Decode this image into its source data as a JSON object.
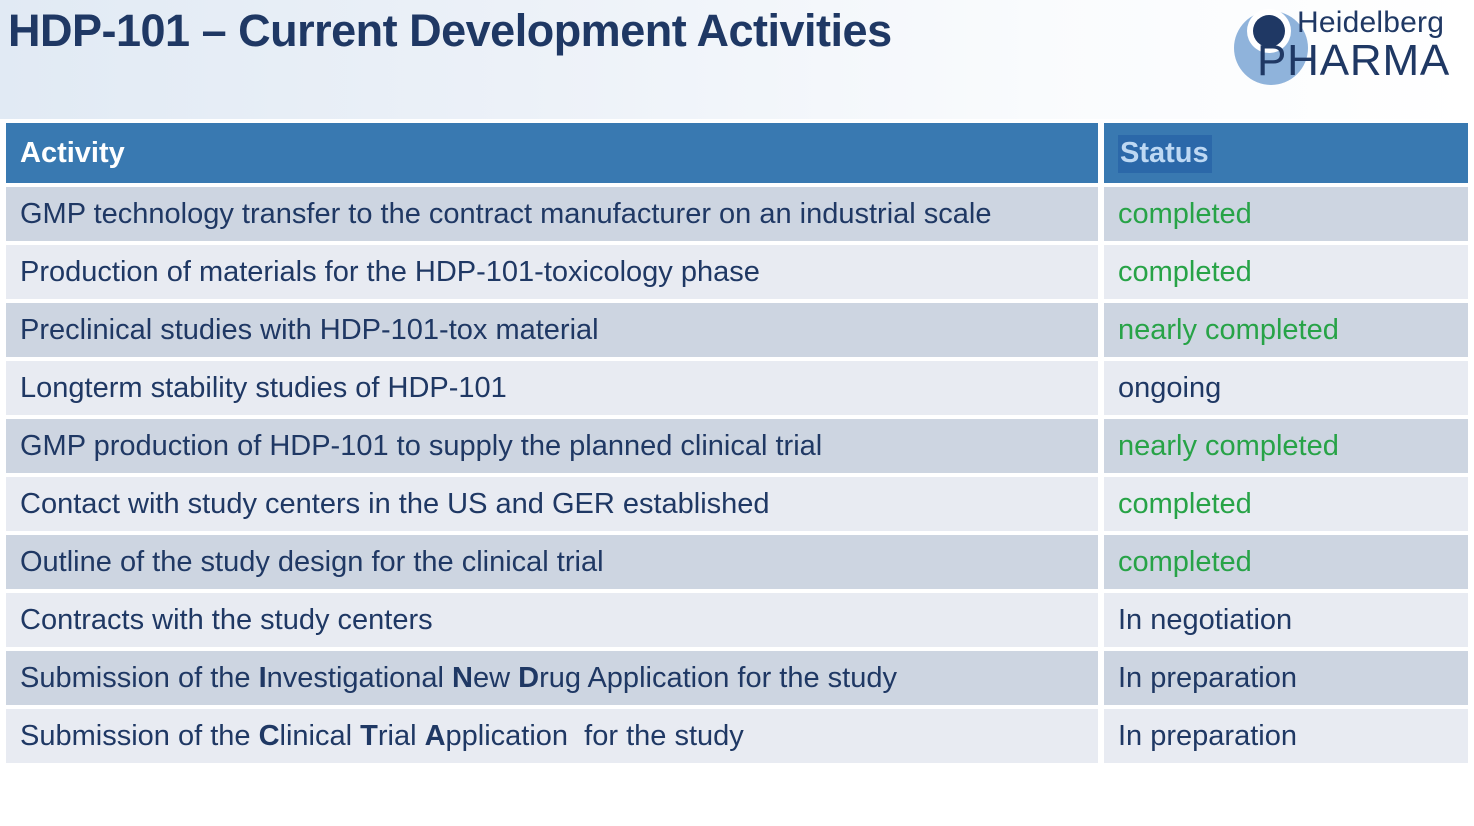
{
  "page": {
    "title": "HDP-101 – Current Development Activities"
  },
  "logo": {
    "name_top": "Heidelberg",
    "name_bottom": "PHARMA",
    "mark": "person-in-circle-icon"
  },
  "table": {
    "headers": {
      "activity": "Activity",
      "status": "Status"
    },
    "rows": [
      {
        "activity": [
          {
            "text": "GMP technology transfer to the contract manufacturer on an industrial scale",
            "bold": false
          }
        ],
        "status": "completed",
        "status_style": "green"
      },
      {
        "activity": [
          {
            "text": "Production of materials for the HDP-101-toxicology phase",
            "bold": false
          }
        ],
        "status": "completed",
        "status_style": "green"
      },
      {
        "activity": [
          {
            "text": "Preclinical studies with HDP-101-tox material",
            "bold": false
          }
        ],
        "status": "nearly completed",
        "status_style": "green"
      },
      {
        "activity": [
          {
            "text": "Longterm stability studies of HDP-101",
            "bold": false
          }
        ],
        "status": "ongoing",
        "status_style": "navy"
      },
      {
        "activity": [
          {
            "text": "GMP production of HDP-101 to supply the planned clinical trial",
            "bold": false
          }
        ],
        "status": "nearly completed",
        "status_style": "green"
      },
      {
        "activity": [
          {
            "text": "Contact with study centers in the US and GER established",
            "bold": false
          }
        ],
        "status": "completed",
        "status_style": "green"
      },
      {
        "activity": [
          {
            "text": "Outline of the study design for the clinical trial",
            "bold": false
          }
        ],
        "status": "completed",
        "status_style": "green"
      },
      {
        "activity": [
          {
            "text": "Contracts with the study centers",
            "bold": false
          }
        ],
        "status": "In negotiation",
        "status_style": "navy"
      },
      {
        "activity": [
          {
            "text": "Submission of the ",
            "bold": false
          },
          {
            "text": "I",
            "bold": true
          },
          {
            "text": "nvestigational ",
            "bold": false
          },
          {
            "text": "N",
            "bold": true
          },
          {
            "text": "ew ",
            "bold": false
          },
          {
            "text": "D",
            "bold": true
          },
          {
            "text": "rug Application for the study",
            "bold": false
          }
        ],
        "status": "In preparation",
        "status_style": "navy"
      },
      {
        "activity": [
          {
            "text": "Submission of the ",
            "bold": false
          },
          {
            "text": "C",
            "bold": true
          },
          {
            "text": "linical ",
            "bold": false
          },
          {
            "text": "T",
            "bold": true
          },
          {
            "text": "rial ",
            "bold": false
          },
          {
            "text": "A",
            "bold": true
          },
          {
            "text": "pplication  for the study",
            "bold": false
          }
        ],
        "status": "In preparation",
        "status_style": "navy"
      }
    ]
  },
  "colors": {
    "navy_text": "#1F3864",
    "header_blue": "#3979B1",
    "selection_blue": "#2B68A9",
    "selection_text": "#BDD8F3",
    "status_green": "#27A347",
    "row_dark": "#CDD5E1",
    "row_light": "#E8EBF2",
    "logo_light_blue": "#8FB3DB"
  }
}
